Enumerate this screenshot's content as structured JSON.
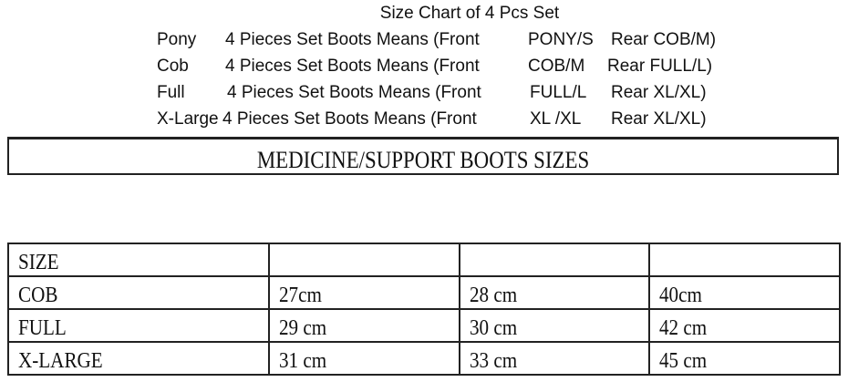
{
  "title": "Size Chart of 4 Pcs Set",
  "sets": [
    {
      "label": "Pony",
      "text": "4 Pieces Set Boots Means (Front",
      "front": "PONY/S",
      "rear": "Rear COB/M)"
    },
    {
      "label": "Cob",
      "text": "4 Pieces Set Boots Means (Front",
      "front": "COB/M",
      "rear": "Rear FULL/L)"
    },
    {
      "label": "Full",
      "text": "4 Pieces Set Boots Means (Front",
      "front": "FULL/L",
      "rear": "Rear XL/XL)"
    },
    {
      "label": "X-Large",
      "text": "4 Pieces Set Boots Means (Front",
      "front": "XL /XL",
      "rear": "Rear XL/XL)"
    }
  ],
  "banner": "MEDICINE/SUPPORT BOOTS SIZES",
  "table": {
    "header": [
      "SIZE",
      "",
      "",
      ""
    ],
    "rows": [
      [
        "COB",
        "27cm",
        "28 cm",
        "40cm"
      ],
      [
        "FULL",
        "29 cm",
        "30 cm",
        "42 cm"
      ],
      [
        "X-LARGE",
        "31 cm",
        "33 cm",
        "45 cm"
      ]
    ]
  }
}
